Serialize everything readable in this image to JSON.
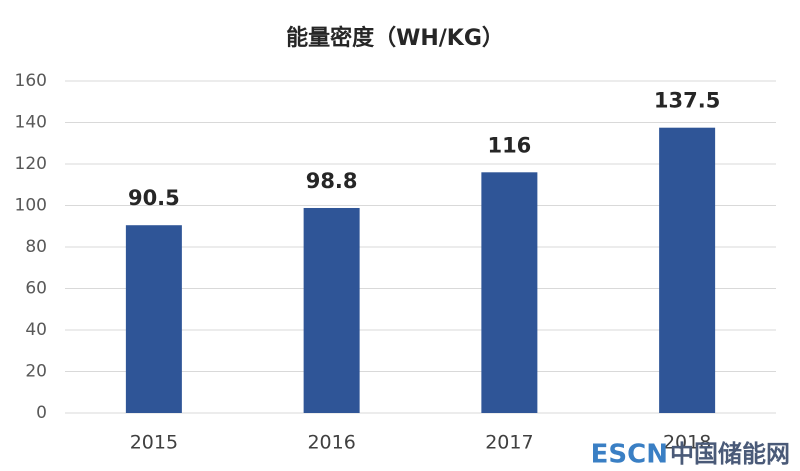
{
  "chart_data": {
    "type": "bar",
    "title": "能量密度（WH/KG）",
    "categories": [
      "2015",
      "2016",
      "2017",
      "2018"
    ],
    "values": [
      90.5,
      98.8,
      116,
      137.5
    ],
    "color": "#2f5597",
    "ylim": [
      0,
      160
    ],
    "yticks": [
      0,
      20,
      40,
      60,
      80,
      100,
      120,
      140,
      160
    ],
    "grid": true,
    "data_labels": true
  },
  "watermark": {
    "brand": "ESCN",
    "site": "中国储能网"
  }
}
